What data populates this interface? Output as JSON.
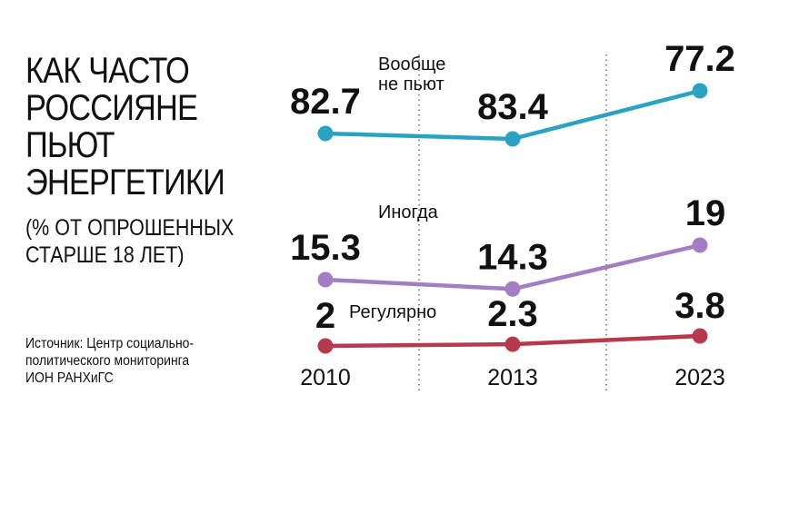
{
  "title_lines": [
    "КАК ЧАСТО",
    "РОССИЯНЕ",
    "ПЬЮТ",
    "ЭНЕРГЕТИКИ"
  ],
  "subtitle_lines": [
    "(% ОТ ОПРОШЕННЫХ",
    "СТАРШЕ 18 ЛЕТ)"
  ],
  "source_lines": [
    "Источник: Центр социально-",
    "политического мониторинга",
    "ИОН РАНХиГС"
  ],
  "chart_data": {
    "type": "line",
    "x": [
      "2010",
      "2013",
      "2023"
    ],
    "series": [
      {
        "name_lines": [
          "Вообще",
          "не пьют"
        ],
        "color": "#2aa3c2",
        "values": [
          82.7,
          83.4,
          77.2
        ],
        "value_labels": [
          "82.7",
          "83.4",
          "77.2"
        ]
      },
      {
        "name_lines": [
          "Иногда"
        ],
        "color": "#a27ec3",
        "values": [
          15.3,
          14.3,
          19
        ],
        "value_labels": [
          "15.3",
          "14.3",
          "19"
        ]
      },
      {
        "name_lines": [
          "Регулярно"
        ],
        "color": "#b43a4c",
        "values": [
          2,
          2.3,
          3.8
        ],
        "value_labels": [
          "2",
          "2.3",
          "3.8"
        ]
      }
    ],
    "grid": "dotted vertical separators between years",
    "legend": "inline labels next to series"
  }
}
